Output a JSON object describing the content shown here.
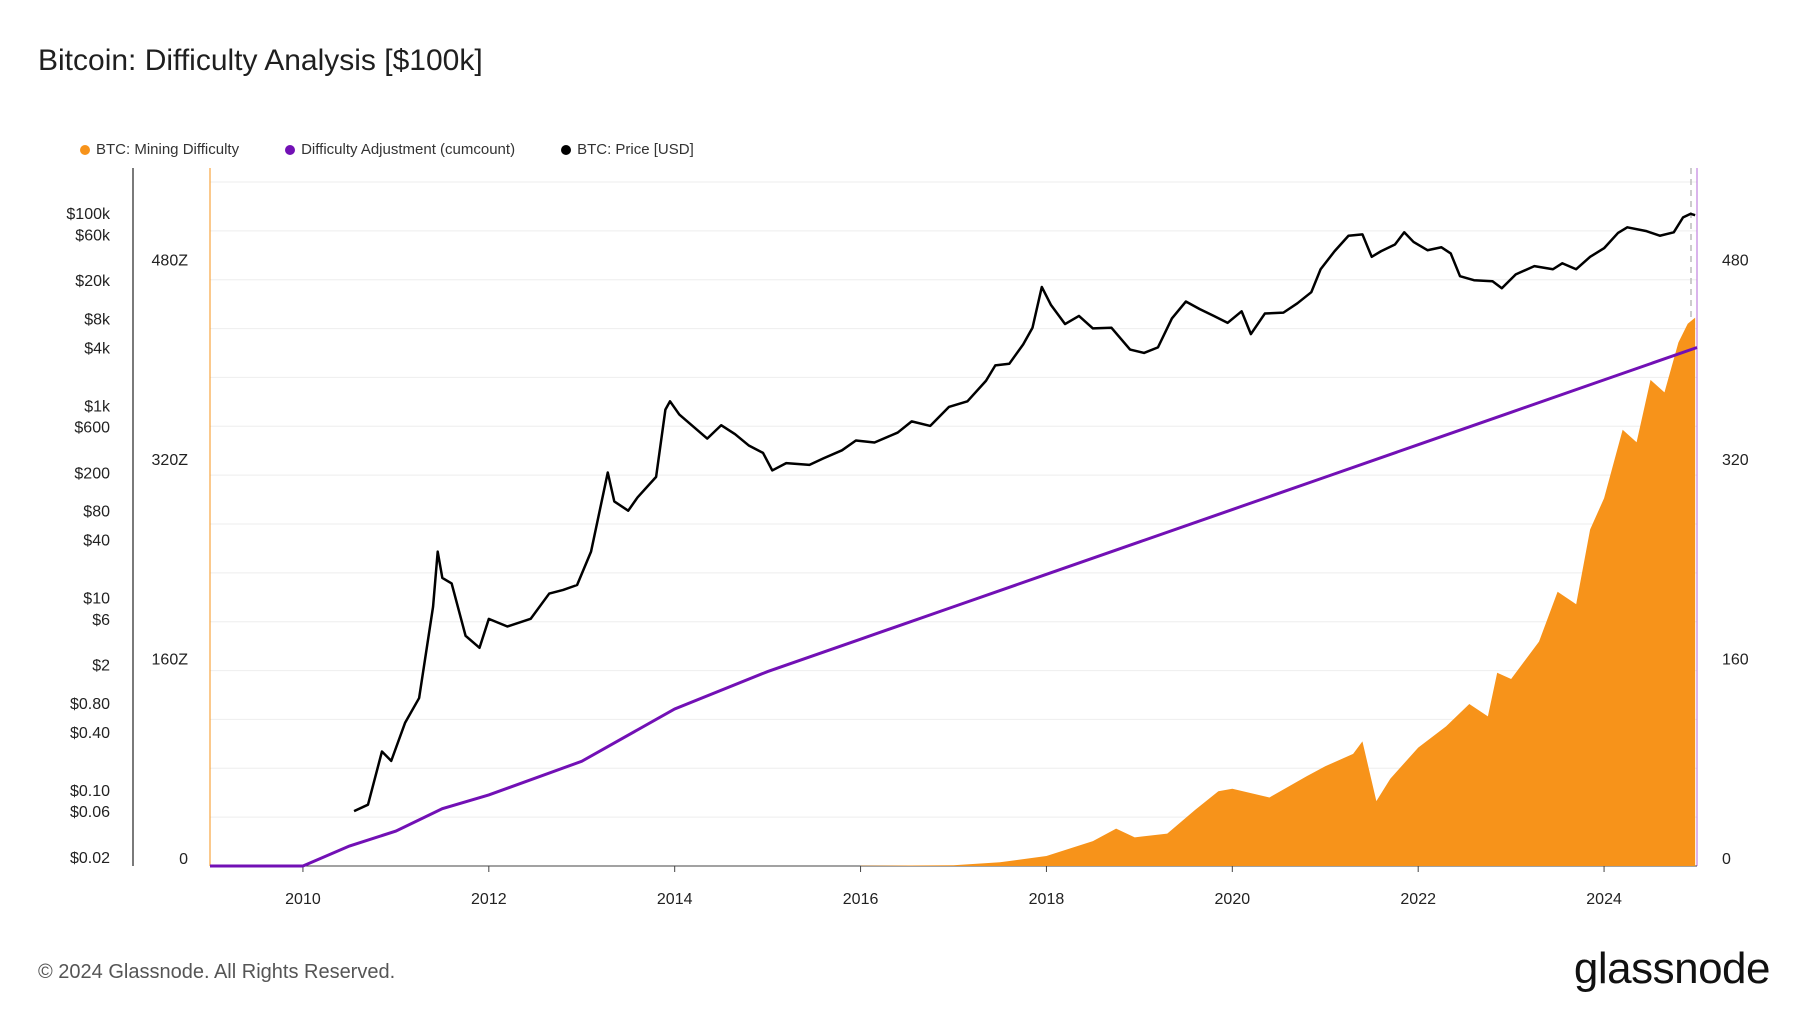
{
  "title": "Bitcoin: Difficulty Analysis [$100k]",
  "legend": [
    {
      "label": "BTC: Mining Difficulty",
      "color": "#f7931a"
    },
    {
      "label": "Difficulty Adjustment (cumcount)",
      "color": "#7210b5"
    },
    {
      "label": "BTC: Price [USD]",
      "color": "#000000"
    }
  ],
  "footer": "© 2024 Glassnode. All Rights Reserved.",
  "logo": "glassnode",
  "chart_data": {
    "type": "line",
    "x_ticks": [
      "2010",
      "2012",
      "2014",
      "2016",
      "2018",
      "2020",
      "2022",
      "2024"
    ],
    "x_range": [
      2009.0,
      2025.0
    ],
    "price_axis": {
      "scale": "log",
      "ticks": [
        {
          "label": "$100k",
          "value": 100000
        },
        {
          "label": "$60k",
          "value": 60000
        },
        {
          "label": "$20k",
          "value": 20000
        },
        {
          "label": "$8k",
          "value": 8000
        },
        {
          "label": "$4k",
          "value": 4000
        },
        {
          "label": "$1k",
          "value": 1000
        },
        {
          "label": "$600",
          "value": 600
        },
        {
          "label": "$200",
          "value": 200
        },
        {
          "label": "$80",
          "value": 80
        },
        {
          "label": "$40",
          "value": 40
        },
        {
          "label": "$10",
          "value": 10
        },
        {
          "label": "$6",
          "value": 6
        },
        {
          "label": "$2",
          "value": 2
        },
        {
          "label": "$0.80",
          "value": 0.8
        },
        {
          "label": "$0.40",
          "value": 0.4
        },
        {
          "label": "$0.10",
          "value": 0.1
        },
        {
          "label": "$0.06",
          "value": 0.06
        },
        {
          "label": "$0.02",
          "value": 0.02
        }
      ],
      "range": [
        0.02,
        100000
      ]
    },
    "difficulty_axis": {
      "ticks": [
        {
          "label": "0",
          "value": 0
        },
        {
          "label": "160Z",
          "value": 160
        },
        {
          "label": "320Z",
          "value": 320
        },
        {
          "label": "480Z",
          "value": 480
        }
      ],
      "range": [
        0,
        560
      ],
      "unit": "Z"
    },
    "adjustment_axis": {
      "ticks": [
        {
          "label": "0",
          "value": 0
        },
        {
          "label": "160",
          "value": 160
        },
        {
          "label": "320",
          "value": 320
        },
        {
          "label": "480",
          "value": 480
        }
      ],
      "range": [
        0,
        560
      ]
    },
    "series": [
      {
        "name": "BTC: Price [USD]",
        "color": "#000000",
        "points": [
          [
            2010.55,
            0.06
          ],
          [
            2010.7,
            0.07
          ],
          [
            2010.85,
            0.25
          ],
          [
            2010.95,
            0.2
          ],
          [
            2011.1,
            0.5
          ],
          [
            2011.25,
            0.9
          ],
          [
            2011.4,
            8
          ],
          [
            2011.45,
            30
          ],
          [
            2011.5,
            16
          ],
          [
            2011.6,
            14
          ],
          [
            2011.75,
            4
          ],
          [
            2011.9,
            3
          ],
          [
            2012.0,
            6
          ],
          [
            2012.2,
            5
          ],
          [
            2012.45,
            6
          ],
          [
            2012.65,
            11
          ],
          [
            2012.8,
            12
          ],
          [
            2012.95,
            13.5
          ],
          [
            2013.1,
            30
          ],
          [
            2013.28,
            200
          ],
          [
            2013.35,
            100
          ],
          [
            2013.5,
            80
          ],
          [
            2013.6,
            110
          ],
          [
            2013.8,
            180
          ],
          [
            2013.9,
            900
          ],
          [
            2013.95,
            1100
          ],
          [
            2014.05,
            800
          ],
          [
            2014.2,
            600
          ],
          [
            2014.35,
            450
          ],
          [
            2014.5,
            620
          ],
          [
            2014.65,
            500
          ],
          [
            2014.8,
            380
          ],
          [
            2014.95,
            320
          ],
          [
            2015.05,
            210
          ],
          [
            2015.2,
            250
          ],
          [
            2015.45,
            240
          ],
          [
            2015.6,
            280
          ],
          [
            2015.8,
            340
          ],
          [
            2015.95,
            430
          ],
          [
            2016.15,
            410
          ],
          [
            2016.4,
            520
          ],
          [
            2016.55,
            680
          ],
          [
            2016.75,
            610
          ],
          [
            2016.95,
            960
          ],
          [
            2017.15,
            1100
          ],
          [
            2017.35,
            1800
          ],
          [
            2017.45,
            2600
          ],
          [
            2017.6,
            2700
          ],
          [
            2017.75,
            4300
          ],
          [
            2017.85,
            6400
          ],
          [
            2017.95,
            17000
          ],
          [
            2018.05,
            11000
          ],
          [
            2018.2,
            7000
          ],
          [
            2018.35,
            8500
          ],
          [
            2018.5,
            6300
          ],
          [
            2018.7,
            6400
          ],
          [
            2018.9,
            3800
          ],
          [
            2019.05,
            3500
          ],
          [
            2019.2,
            4000
          ],
          [
            2019.35,
            8000
          ],
          [
            2019.5,
            12000
          ],
          [
            2019.65,
            10000
          ],
          [
            2019.8,
            8500
          ],
          [
            2019.95,
            7200
          ],
          [
            2020.1,
            9500
          ],
          [
            2020.2,
            5500
          ],
          [
            2020.35,
            9000
          ],
          [
            2020.55,
            9200
          ],
          [
            2020.7,
            11500
          ],
          [
            2020.85,
            15000
          ],
          [
            2020.95,
            26000
          ],
          [
            2021.1,
            40000
          ],
          [
            2021.25,
            58000
          ],
          [
            2021.4,
            60000
          ],
          [
            2021.5,
            35000
          ],
          [
            2021.6,
            40000
          ],
          [
            2021.75,
            47000
          ],
          [
            2021.85,
            63000
          ],
          [
            2021.95,
            50000
          ],
          [
            2022.1,
            41000
          ],
          [
            2022.25,
            44000
          ],
          [
            2022.35,
            38000
          ],
          [
            2022.45,
            22000
          ],
          [
            2022.6,
            20000
          ],
          [
            2022.8,
            19500
          ],
          [
            2022.9,
            16500
          ],
          [
            2023.05,
            23000
          ],
          [
            2023.25,
            28000
          ],
          [
            2023.45,
            26000
          ],
          [
            2023.55,
            30000
          ],
          [
            2023.7,
            26000
          ],
          [
            2023.85,
            35000
          ],
          [
            2024.0,
            43000
          ],
          [
            2024.15,
            62000
          ],
          [
            2024.25,
            71000
          ],
          [
            2024.45,
            65000
          ],
          [
            2024.6,
            58000
          ],
          [
            2024.75,
            63000
          ],
          [
            2024.85,
            90000
          ],
          [
            2024.93,
            98000
          ],
          [
            2024.98,
            95000
          ]
        ]
      },
      {
        "name": "Difficulty Adjustment (cumcount)",
        "color": "#7210b5",
        "points": [
          [
            2009.0,
            0
          ],
          [
            2010.0,
            0
          ],
          [
            2010.5,
            16
          ],
          [
            2011.0,
            28
          ],
          [
            2011.5,
            46
          ],
          [
            2012.0,
            57
          ],
          [
            2013.0,
            84
          ],
          [
            2014.0,
            126
          ],
          [
            2015.0,
            156
          ],
          [
            2016.0,
            182
          ],
          [
            2017.0,
            208
          ],
          [
            2018.0,
            234
          ],
          [
            2019.0,
            260
          ],
          [
            2020.0,
            286
          ],
          [
            2021.0,
            312
          ],
          [
            2022.0,
            338
          ],
          [
            2023.0,
            364
          ],
          [
            2024.0,
            390
          ],
          [
            2025.0,
            416
          ]
        ]
      },
      {
        "name": "BTC: Mining Difficulty",
        "color": "#f7931a",
        "points": [
          [
            2016.0,
            0.2
          ],
          [
            2017.0,
            0.6
          ],
          [
            2017.5,
            3
          ],
          [
            2018.0,
            8
          ],
          [
            2018.5,
            20
          ],
          [
            2018.75,
            30
          ],
          [
            2018.95,
            23
          ],
          [
            2019.3,
            26
          ],
          [
            2019.6,
            45
          ],
          [
            2019.85,
            60
          ],
          [
            2020.0,
            62
          ],
          [
            2020.4,
            55
          ],
          [
            2020.8,
            72
          ],
          [
            2021.0,
            80
          ],
          [
            2021.3,
            90
          ],
          [
            2021.4,
            100
          ],
          [
            2021.55,
            52
          ],
          [
            2021.7,
            70
          ],
          [
            2022.0,
            95
          ],
          [
            2022.3,
            112
          ],
          [
            2022.55,
            130
          ],
          [
            2022.75,
            120
          ],
          [
            2022.85,
            155
          ],
          [
            2023.0,
            150
          ],
          [
            2023.3,
            180
          ],
          [
            2023.5,
            220
          ],
          [
            2023.7,
            210
          ],
          [
            2023.85,
            270
          ],
          [
            2024.0,
            295
          ],
          [
            2024.2,
            350
          ],
          [
            2024.35,
            340
          ],
          [
            2024.5,
            390
          ],
          [
            2024.65,
            380
          ],
          [
            2024.8,
            420
          ],
          [
            2024.9,
            435
          ],
          [
            2024.98,
            440
          ]
        ]
      }
    ],
    "grid": true
  }
}
